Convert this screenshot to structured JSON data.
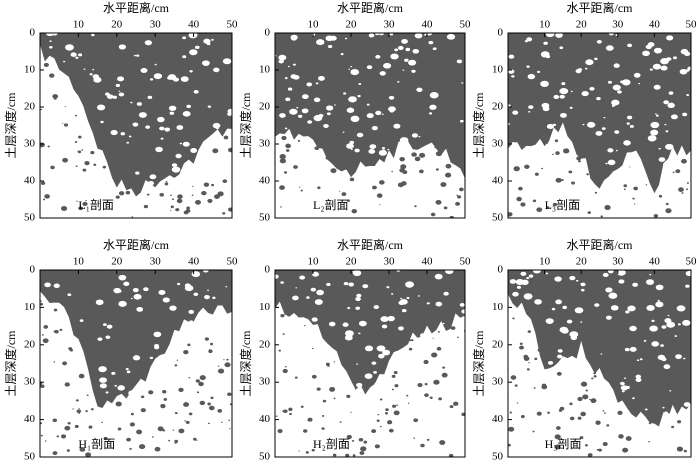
{
  "chart_data": [
    {
      "type": "image",
      "xlabel": "水平距离/cm",
      "ylabel": "土层深度/cm",
      "annotation": "L₁剖面",
      "xlim": [
        0,
        50
      ],
      "ylim": [
        0,
        50
      ],
      "yinverted": true,
      "xticks": [
        10,
        20,
        30,
        40,
        50
      ],
      "yticks": [
        0,
        10,
        20,
        30,
        40,
        50
      ],
      "color": "#595959"
    },
    {
      "type": "image",
      "xlabel": "水平距离/cm",
      "ylabel": "土层深度/cm",
      "annotation": "L₂剖面",
      "xlim": [
        0,
        50
      ],
      "ylim": [
        0,
        50
      ],
      "yinverted": true,
      "xticks": [
        10,
        20,
        30,
        40,
        50
      ],
      "yticks": [
        0,
        10,
        20,
        30,
        40,
        50
      ],
      "color": "#595959"
    },
    {
      "type": "image",
      "xlabel": "水平距离/cm",
      "ylabel": "土层深度/cm",
      "annotation": "L₃剖面",
      "xlim": [
        0,
        50
      ],
      "ylim": [
        0,
        50
      ],
      "yinverted": true,
      "xticks": [
        10,
        20,
        30,
        40,
        50
      ],
      "yticks": [
        0,
        10,
        20,
        30,
        40,
        50
      ],
      "color": "#595959"
    },
    {
      "type": "image",
      "xlabel": "水平距离/cm",
      "ylabel": "土层深度/cm",
      "annotation": "H₁剖面",
      "xlim": [
        0,
        50
      ],
      "ylim": [
        0,
        50
      ],
      "yinverted": true,
      "xticks": [
        10,
        20,
        30,
        40,
        50
      ],
      "yticks": [
        0,
        10,
        20,
        30,
        40,
        50
      ],
      "color": "#595959"
    },
    {
      "type": "image",
      "xlabel": "水平距离/cm",
      "ylabel": "土层深度/cm",
      "annotation": "H₂剖面",
      "xlim": [
        0,
        50
      ],
      "ylim": [
        0,
        50
      ],
      "yinverted": true,
      "xticks": [
        10,
        20,
        30,
        40,
        50
      ],
      "yticks": [
        0,
        10,
        20,
        30,
        40,
        50
      ],
      "color": "#595959"
    },
    {
      "type": "image",
      "xlabel": "水平距离/cm",
      "ylabel": "土层深度/cm",
      "annotation": "H₃剖面",
      "xlim": [
        0,
        50
      ],
      "ylim": [
        0,
        50
      ],
      "yinverted": true,
      "xticks": [
        10,
        20,
        30,
        40,
        50
      ],
      "yticks": [
        0,
        10,
        20,
        30,
        40,
        50
      ],
      "color": "#595959"
    }
  ]
}
